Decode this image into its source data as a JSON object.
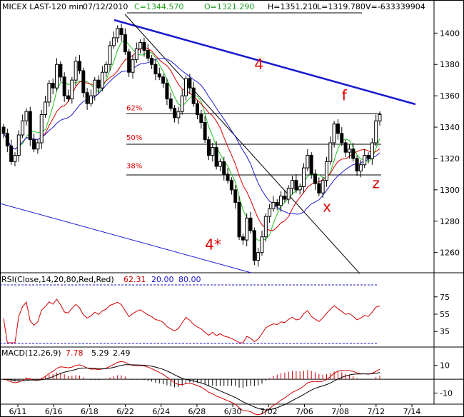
{
  "chart_data": {
    "type": "candlestick",
    "header": {
      "symbol": "MICEX LAST-120 min",
      "date": "07/12/2010",
      "close": "C=1344.570",
      "open": "O=1321.290",
      "high": "H=1351.210",
      "low": "L=1319.780",
      "volume": "V=-633339904"
    },
    "price_axis": {
      "ylim": [
        1248,
        1412
      ],
      "ticks": [
        "1400",
        "1380",
        "1360",
        "1340",
        "1320",
        "1300",
        "1280",
        "1260"
      ],
      "tick_values": [
        1400,
        1380,
        1360,
        1340,
        1320,
        1300,
        1280,
        1260
      ]
    },
    "x_ticks": [
      "6/11",
      "6/16",
      "6/18",
      "6/22",
      "6/24",
      "6/28",
      "6/30",
      "7/02",
      "7/06",
      "7/08",
      "7/12",
      "7/14"
    ],
    "fib_labels": [
      {
        "label": "62%",
        "price": 1348
      },
      {
        "label": "50%",
        "price": 1329
      },
      {
        "label": "38%",
        "price": 1311
      }
    ],
    "annotations": [
      {
        "text": "4",
        "bar": 66,
        "price": 1377
      },
      {
        "text": "4*",
        "bar": 53,
        "price": 1262
      },
      {
        "text": "f",
        "bar": 89,
        "price": 1357
      },
      {
        "text": "x",
        "bar": 84,
        "price": 1286
      },
      {
        "text": "z",
        "bar": 97,
        "price": 1301
      }
    ],
    "closes": [
      1336,
      1328,
      1318,
      1322,
      1335,
      1344,
      1350,
      1332,
      1326,
      1330,
      1348,
      1356,
      1368,
      1365,
      1380,
      1372,
      1360,
      1358,
      1370,
      1382,
      1376,
      1362,
      1355,
      1360,
      1370,
      1365,
      1375,
      1380,
      1392,
      1397,
      1403,
      1399,
      1388,
      1375,
      1383,
      1390,
      1394,
      1389,
      1384,
      1380,
      1374,
      1372,
      1368,
      1358,
      1352,
      1346,
      1350,
      1360,
      1371,
      1365,
      1355,
      1348,
      1343,
      1332,
      1322,
      1327,
      1315,
      1318,
      1310,
      1306,
      1300,
      1292,
      1270,
      1268,
      1282,
      1274,
      1255,
      1260,
      1270,
      1283,
      1288,
      1292,
      1290,
      1296,
      1294,
      1301,
      1306,
      1300,
      1302,
      1314,
      1322,
      1310,
      1304,
      1298,
      1306,
      1318,
      1330,
      1342,
      1336,
      1330,
      1324,
      1326,
      1320,
      1312,
      1316,
      1322,
      1320,
      1330,
      1344,
      1348
    ],
    "rsi": {
      "label": "RSI(Close,14,20,80,Red,Red)",
      "value": "62.31",
      "lower": "20.00",
      "upper": "80.00",
      "ticks": [
        "75",
        "55",
        "35"
      ],
      "tick_values": [
        75,
        55,
        35
      ],
      "ylim": [
        22,
        88
      ]
    },
    "macd": {
      "label": "MACD(12,26,9)",
      "macd_value": "7.78",
      "signal_value": "5.29",
      "hist_value": "2.49",
      "ticks": [
        "10",
        "-10"
      ],
      "tick_values": [
        10,
        -10
      ],
      "ylim": [
        -17,
        15
      ]
    }
  }
}
